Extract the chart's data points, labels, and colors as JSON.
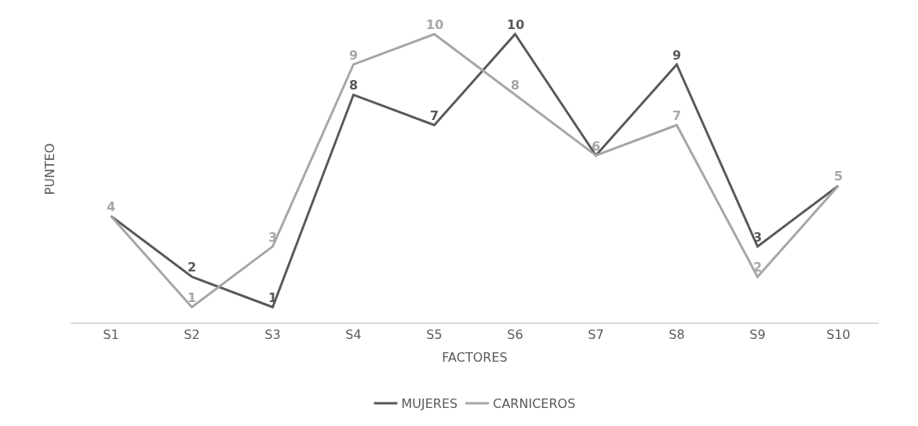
{
  "chart_data": {
    "type": "line",
    "xlabel": "FACTORES",
    "ylabel": "PUNTEO",
    "categories": [
      "S1",
      "S2",
      "S3",
      "S4",
      "S5",
      "S6",
      "S7",
      "S8",
      "S9",
      "S10"
    ],
    "series": [
      {
        "name": "MUJERES",
        "color": "#595959",
        "values": [
          4,
          2,
          1,
          8,
          7,
          10,
          6,
          9,
          3,
          5
        ],
        "value_labels": [
          null,
          "2",
          "1",
          "8",
          "7",
          "10",
          null,
          "9",
          "3",
          null
        ]
      },
      {
        "name": "CARNICEROS",
        "color": "#a6a6a6",
        "values": [
          4,
          1,
          3,
          9,
          10,
          8,
          6,
          7,
          2,
          5
        ],
        "value_labels": [
          "4",
          "1",
          "3",
          "9",
          "10",
          "8",
          "6",
          "7",
          "2",
          "5"
        ]
      }
    ],
    "legend": "bottom",
    "line_style": "solid"
  }
}
